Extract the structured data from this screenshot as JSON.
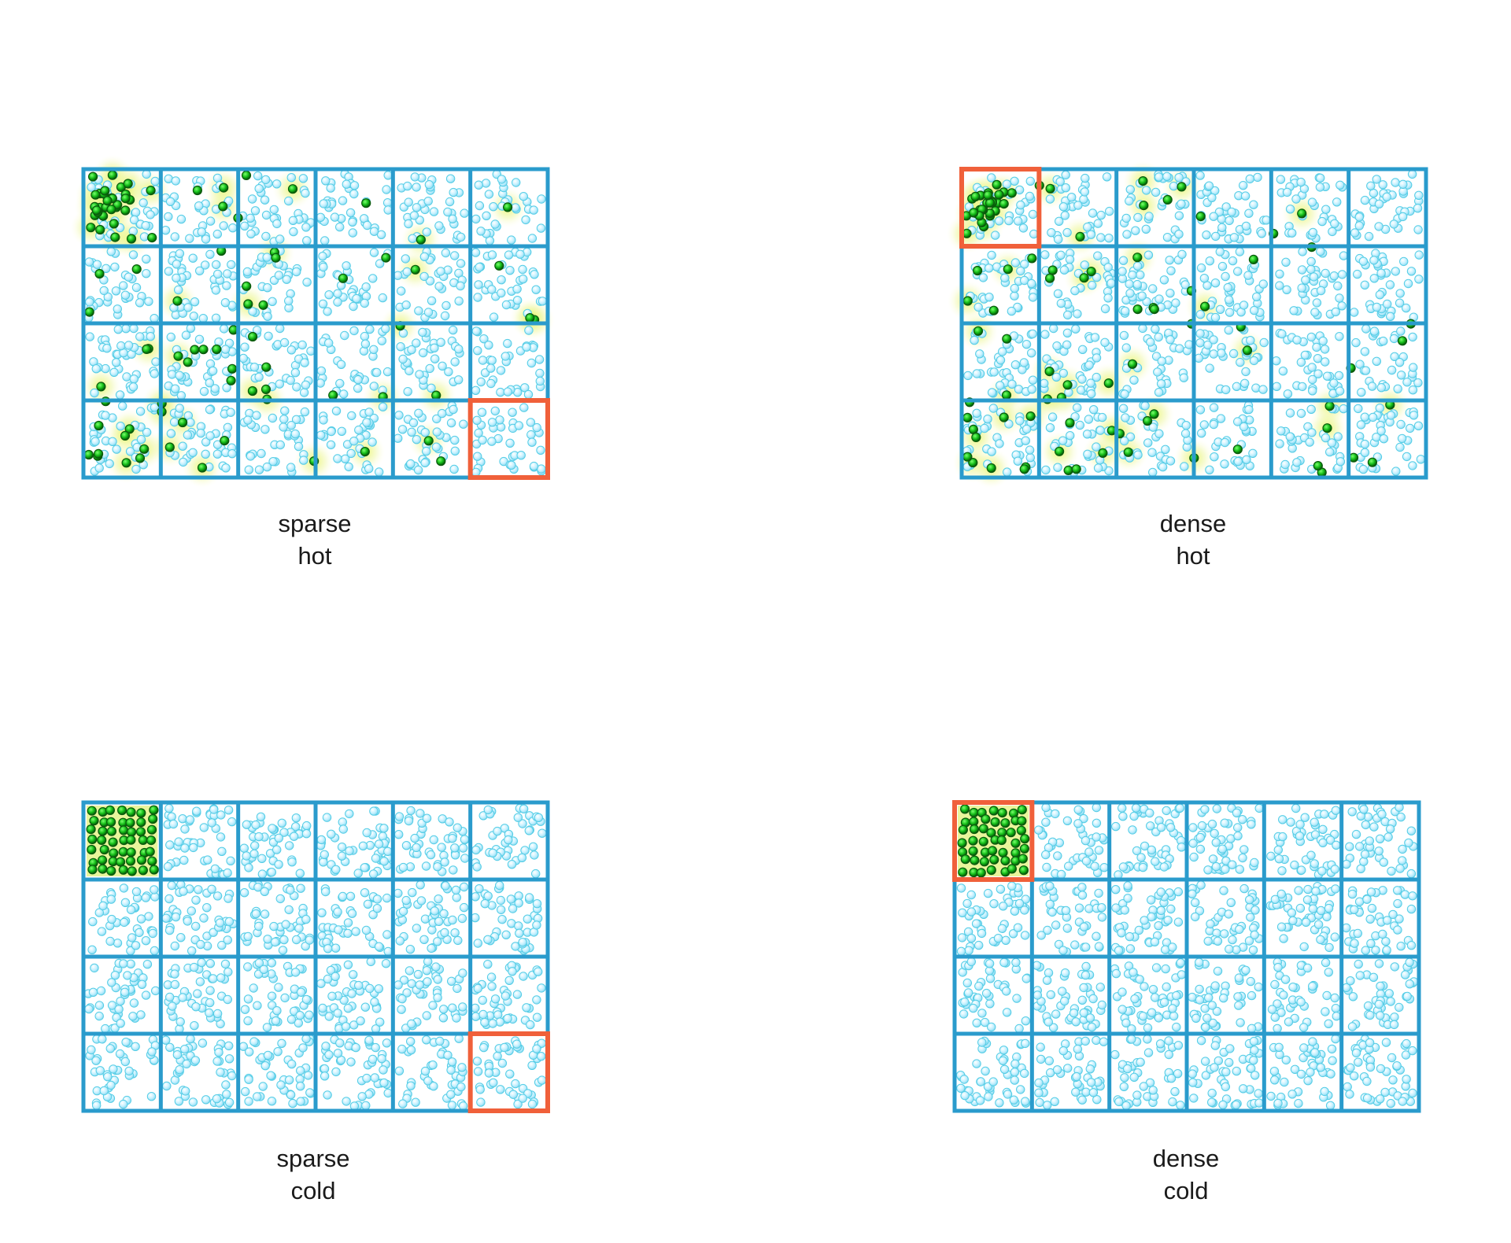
{
  "colors": {
    "grid": "#2a9bcc",
    "highlight": "#f0603a",
    "particle_light": "#bff0ff",
    "particle_light_stroke": "#55cde6",
    "particle_green": "#16c21a",
    "particle_green_dark": "#0a5a0c",
    "glow": "#e2f27a"
  },
  "panels": [
    {
      "id": "sparse-hot",
      "grid": {
        "cols": 6,
        "rows": 4
      },
      "highlight_cell": {
        "col": 6,
        "row": 4
      },
      "caption": [
        "sparse",
        "hot"
      ]
    },
    {
      "id": "dense-hot",
      "grid": {
        "cols": 6,
        "rows": 4
      },
      "highlight_cell": {
        "col": 1,
        "row": 1
      },
      "caption": [
        "dense",
        "hot"
      ]
    },
    {
      "id": "sparse-cold",
      "grid": {
        "cols": 6,
        "rows": 4
      },
      "highlight_cell": {
        "col": 6,
        "row": 4
      },
      "caption": [
        "sparse",
        "cold"
      ]
    },
    {
      "id": "dense-cold",
      "grid": {
        "cols": 6,
        "rows": 4
      },
      "highlight_cell": {
        "col": 1,
        "row": 1
      },
      "caption": [
        "dense",
        "cold"
      ]
    }
  ]
}
